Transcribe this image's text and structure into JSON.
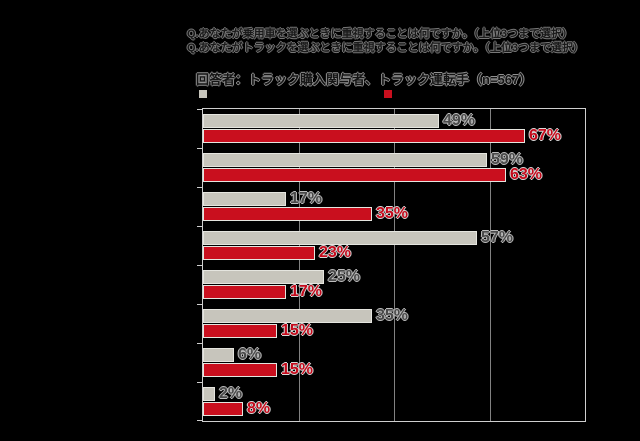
{
  "header": {
    "question_line1": "Q.あなたが乗用車を選ぶときに重視することは何ですか。（上位3つまで選択）",
    "question_line2": "Q.あなたがトラックを選ぶときに重視することは何ですか。（上位3つまで選択）",
    "respondents": "回答者：トラック購入関与者、トラック運転手（n=567）"
  },
  "chart_data": {
    "type": "bar",
    "orientation": "horizontal",
    "title": "",
    "categories": [
      "",
      "",
      "",
      "",
      "",
      "",
      "",
      ""
    ],
    "series": [
      {
        "name": "series1-gray",
        "color": "#C7C5BC",
        "values": [
          49,
          59,
          17,
          57,
          25,
          35,
          6,
          2
        ]
      },
      {
        "name": "series2-red",
        "color": "#C90F1E",
        "values": [
          67,
          63,
          35,
          23,
          17,
          15,
          15,
          8
        ]
      }
    ],
    "value_suffix": "%",
    "xlim": [
      0,
      80
    ],
    "gridline_interval": 20,
    "grid": true,
    "legend_position": "top"
  },
  "colors": {
    "background": "#000000",
    "bar_gray": "#C7C5BC",
    "bar_red": "#C90F1E",
    "bar_outline": "#E5E5DF",
    "gridline": "#828282",
    "plot_border": "#CFCFCF",
    "value_label_gray": "#4A4A4A",
    "value_label_red": "#C50A1B",
    "text_halo": "#909090"
  }
}
